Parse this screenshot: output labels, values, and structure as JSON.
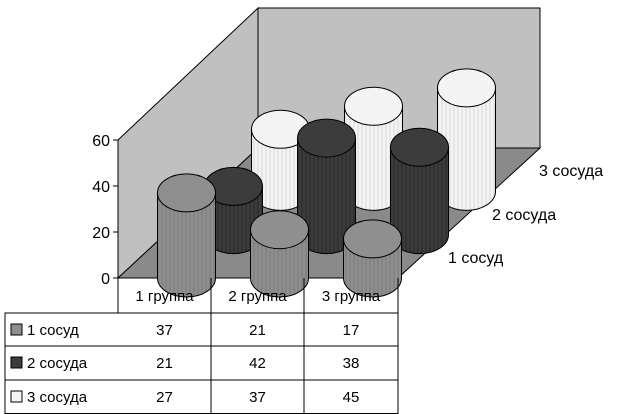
{
  "chart_data": {
    "type": "bar",
    "style": "3d-cylinder",
    "categories": [
      "1 группа",
      "2 группа",
      "3 группа"
    ],
    "series": [
      {
        "name": "1 сосуд",
        "values": [
          37,
          21,
          17
        ],
        "color": "#8f8f8f"
      },
      {
        "name": "2 сосуда",
        "values": [
          21,
          42,
          38
        ],
        "color": "#3c3c3c"
      },
      {
        "name": "3 сосуда",
        "values": [
          27,
          37,
          45
        ],
        "color": "#f4f4f4"
      }
    ],
    "yticks": [
      "0",
      "20",
      "40",
      "60"
    ],
    "ylim": [
      0,
      60
    ],
    "grid": false,
    "data_table": true,
    "legend": "data-table"
  }
}
